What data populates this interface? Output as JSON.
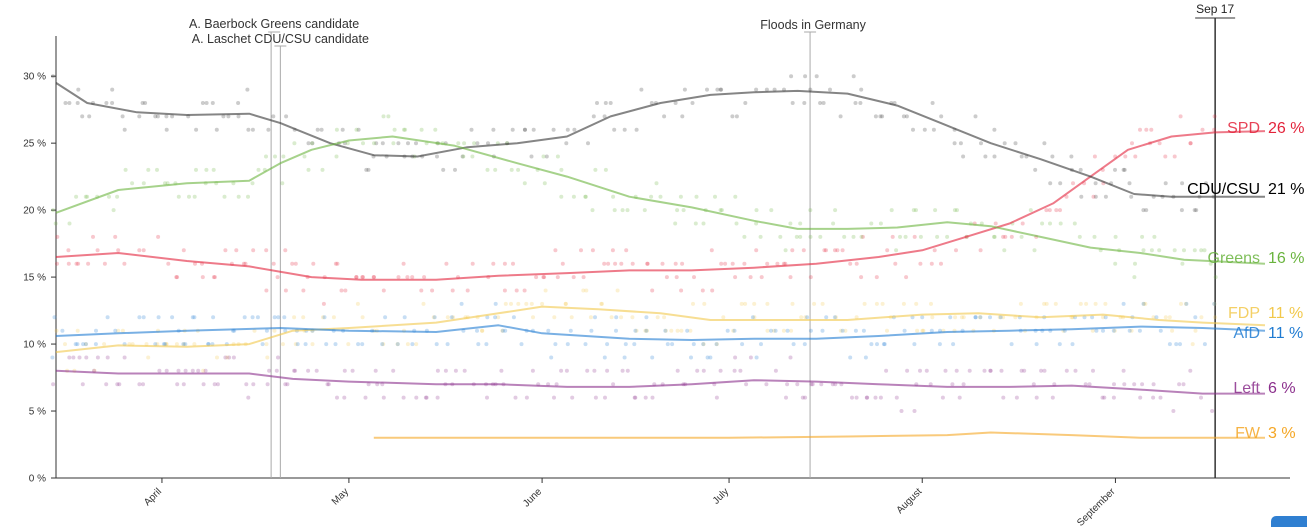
{
  "chart_data": {
    "type": "line",
    "y_axis": {
      "min": 0,
      "max": 33,
      "ticks": [
        0,
        5,
        10,
        15,
        20,
        25,
        30
      ],
      "tick_suffix": " %"
    },
    "x_axis": {
      "start": "2021-03-15",
      "end": "2021-09-25",
      "months": [
        {
          "label": "April",
          "date": "2021-04-01"
        },
        {
          "label": "May",
          "date": "2021-05-01"
        },
        {
          "label": "June",
          "date": "2021-06-01"
        },
        {
          "label": "July",
          "date": "2021-07-01"
        },
        {
          "label": "August",
          "date": "2021-08-01"
        },
        {
          "label": "September",
          "date": "2021-09-01"
        }
      ]
    },
    "current_date": {
      "label": "Sep 17",
      "date": "2021-09-17"
    },
    "annotations": [
      {
        "label": "A. Baerbock Greens candidate",
        "date": "2021-04-19"
      },
      {
        "label": "A. Laschet CDU/CSU candidate",
        "date": "2021-04-20"
      },
      {
        "label": "Floods in Germany",
        "date": "2021-07-14"
      }
    ],
    "series": [
      {
        "name": "SPD",
        "end_label": "26 %",
        "color": "#e3223a",
        "points": [
          [
            "2021-03-15",
            16.5
          ],
          [
            "2021-03-25",
            16.8
          ],
          [
            "2021-04-05",
            16.2
          ],
          [
            "2021-04-15",
            15.8
          ],
          [
            "2021-04-25",
            15.0
          ],
          [
            "2021-05-03",
            14.8
          ],
          [
            "2021-05-15",
            14.8
          ],
          [
            "2021-05-25",
            15.1
          ],
          [
            "2021-06-05",
            15.3
          ],
          [
            "2021-06-15",
            15.5
          ],
          [
            "2021-06-25",
            15.5
          ],
          [
            "2021-07-05",
            15.7
          ],
          [
            "2021-07-15",
            16.0
          ],
          [
            "2021-07-25",
            16.5
          ],
          [
            "2021-08-01",
            17.0
          ],
          [
            "2021-08-08",
            18.0
          ],
          [
            "2021-08-15",
            19.0
          ],
          [
            "2021-08-22",
            20.5
          ],
          [
            "2021-08-28",
            22.5
          ],
          [
            "2021-09-03",
            24.5
          ],
          [
            "2021-09-10",
            25.5
          ],
          [
            "2021-09-17",
            25.8
          ],
          [
            "2021-09-25",
            25.9
          ]
        ]
      },
      {
        "name": "CDU/CSU",
        "end_label": "21 %",
        "color": "#333333",
        "points": [
          [
            "2021-03-15",
            29.5
          ],
          [
            "2021-03-20",
            28.0
          ],
          [
            "2021-03-28",
            27.3
          ],
          [
            "2021-04-05",
            27.1
          ],
          [
            "2021-04-15",
            27.2
          ],
          [
            "2021-04-20",
            26.5
          ],
          [
            "2021-04-28",
            25.0
          ],
          [
            "2021-05-05",
            24.1
          ],
          [
            "2021-05-12",
            24.0
          ],
          [
            "2021-05-20",
            24.7
          ],
          [
            "2021-05-28",
            25.0
          ],
          [
            "2021-06-05",
            25.5
          ],
          [
            "2021-06-12",
            27.0
          ],
          [
            "2021-06-20",
            28.0
          ],
          [
            "2021-06-28",
            28.6
          ],
          [
            "2021-07-05",
            28.8
          ],
          [
            "2021-07-12",
            28.9
          ],
          [
            "2021-07-20",
            28.7
          ],
          [
            "2021-07-28",
            27.8
          ],
          [
            "2021-08-04",
            26.5
          ],
          [
            "2021-08-12",
            25.0
          ],
          [
            "2021-08-20",
            23.8
          ],
          [
            "2021-08-28",
            22.5
          ],
          [
            "2021-09-04",
            21.2
          ],
          [
            "2021-09-10",
            21.0
          ],
          [
            "2021-09-25",
            21.0
          ]
        ]
      },
      {
        "name": "Greens",
        "end_label": "16 %",
        "color": "#6ab43e",
        "points": [
          [
            "2021-03-15",
            19.8
          ],
          [
            "2021-03-25",
            21.5
          ],
          [
            "2021-04-05",
            22.0
          ],
          [
            "2021-04-15",
            22.2
          ],
          [
            "2021-04-20",
            23.5
          ],
          [
            "2021-04-25",
            24.5
          ],
          [
            "2021-05-01",
            25.2
          ],
          [
            "2021-05-08",
            25.5
          ],
          [
            "2021-05-18",
            24.8
          ],
          [
            "2021-05-28",
            23.5
          ],
          [
            "2021-06-05",
            22.5
          ],
          [
            "2021-06-15",
            21.0
          ],
          [
            "2021-06-25",
            20.2
          ],
          [
            "2021-07-05",
            19.2
          ],
          [
            "2021-07-12",
            18.6
          ],
          [
            "2021-07-20",
            18.6
          ],
          [
            "2021-07-28",
            18.7
          ],
          [
            "2021-08-05",
            19.1
          ],
          [
            "2021-08-12",
            18.8
          ],
          [
            "2021-08-20",
            18.0
          ],
          [
            "2021-08-28",
            17.2
          ],
          [
            "2021-09-05",
            16.8
          ],
          [
            "2021-09-12",
            16.3
          ],
          [
            "2021-09-25",
            16.0
          ]
        ]
      },
      {
        "name": "FDP",
        "end_label": "11 %",
        "color": "#f2c84b",
        "points": [
          [
            "2021-03-15",
            9.4
          ],
          [
            "2021-03-25",
            9.9
          ],
          [
            "2021-04-05",
            9.8
          ],
          [
            "2021-04-15",
            10.0
          ],
          [
            "2021-04-22",
            11.0
          ],
          [
            "2021-05-01",
            11.2
          ],
          [
            "2021-05-15",
            11.6
          ],
          [
            "2021-05-25",
            12.3
          ],
          [
            "2021-06-01",
            12.8
          ],
          [
            "2021-06-10",
            12.6
          ],
          [
            "2021-06-20",
            12.3
          ],
          [
            "2021-06-28",
            11.8
          ],
          [
            "2021-07-10",
            11.8
          ],
          [
            "2021-07-20",
            11.8
          ],
          [
            "2021-08-01",
            12.2
          ],
          [
            "2021-08-10",
            12.3
          ],
          [
            "2021-08-20",
            12.0
          ],
          [
            "2021-08-30",
            12.2
          ],
          [
            "2021-09-08",
            11.8
          ],
          [
            "2021-09-15",
            11.6
          ],
          [
            "2021-09-25",
            11.4
          ]
        ]
      },
      {
        "name": "AfD",
        "end_label": "11 %",
        "color": "#1f7bd2",
        "points": [
          [
            "2021-03-15",
            10.6
          ],
          [
            "2021-03-25",
            10.8
          ],
          [
            "2021-04-05",
            11.0
          ],
          [
            "2021-04-20",
            11.2
          ],
          [
            "2021-05-01",
            11.0
          ],
          [
            "2021-05-15",
            10.9
          ],
          [
            "2021-05-25",
            11.4
          ],
          [
            "2021-06-01",
            10.8
          ],
          [
            "2021-06-15",
            10.4
          ],
          [
            "2021-06-25",
            10.3
          ],
          [
            "2021-07-05",
            10.4
          ],
          [
            "2021-07-15",
            10.4
          ],
          [
            "2021-07-25",
            10.6
          ],
          [
            "2021-08-05",
            10.9
          ],
          [
            "2021-08-15",
            11.0
          ],
          [
            "2021-08-25",
            11.1
          ],
          [
            "2021-09-05",
            11.3
          ],
          [
            "2021-09-15",
            11.2
          ],
          [
            "2021-09-25",
            11.0
          ]
        ]
      },
      {
        "name": "Left",
        "end_label": "6 %",
        "color": "#8b2f8c",
        "points": [
          [
            "2021-03-15",
            8.0
          ],
          [
            "2021-03-25",
            7.8
          ],
          [
            "2021-04-05",
            7.8
          ],
          [
            "2021-04-15",
            7.8
          ],
          [
            "2021-04-22",
            7.4
          ],
          [
            "2021-05-01",
            7.2
          ],
          [
            "2021-05-15",
            7.0
          ],
          [
            "2021-05-25",
            7.0
          ],
          [
            "2021-06-05",
            6.8
          ],
          [
            "2021-06-15",
            6.8
          ],
          [
            "2021-06-25",
            7.0
          ],
          [
            "2021-07-05",
            7.3
          ],
          [
            "2021-07-15",
            7.2
          ],
          [
            "2021-07-25",
            7.0
          ],
          [
            "2021-08-05",
            6.8
          ],
          [
            "2021-08-15",
            6.8
          ],
          [
            "2021-08-25",
            6.9
          ],
          [
            "2021-09-05",
            6.6
          ],
          [
            "2021-09-15",
            6.3
          ],
          [
            "2021-09-25",
            6.3
          ]
        ]
      },
      {
        "name": "FW",
        "end_label": "3 %",
        "color": "#f5a623",
        "points": [
          [
            "2021-05-05",
            3.0
          ],
          [
            "2021-06-01",
            3.0
          ],
          [
            "2021-07-01",
            3.0
          ],
          [
            "2021-07-20",
            3.1
          ],
          [
            "2021-08-05",
            3.2
          ],
          [
            "2021-08-12",
            3.4
          ],
          [
            "2021-08-25",
            3.2
          ],
          [
            "2021-09-05",
            3.0
          ],
          [
            "2021-09-25",
            3.0
          ]
        ]
      }
    ]
  }
}
